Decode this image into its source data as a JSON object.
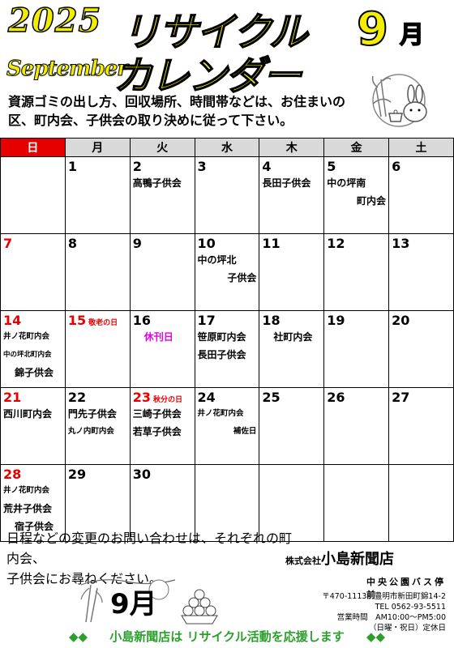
{
  "header": {
    "year": "2025",
    "month_en": "September",
    "title_line1": "リサイクル",
    "title_line2": "カレンダー",
    "month_num": "9",
    "month_unit": "月"
  },
  "intro": "資源ゴミの出し方、回収場所、時間帯などは、お住まいの区、町内会、子供会の取り決めに従って下さい。",
  "weekdays": [
    "日",
    "月",
    "火",
    "水",
    "木",
    "金",
    "土"
  ],
  "days": {
    "d1": "1",
    "d2": "2",
    "d3": "3",
    "d4": "4",
    "d5": "5",
    "d6": "6",
    "d7": "7",
    "d8": "8",
    "d9": "9",
    "d10": "10",
    "d11": "11",
    "d12": "12",
    "d13": "13",
    "d14": "14",
    "d15": "15",
    "d16": "16",
    "d17": "17",
    "d18": "18",
    "d19": "19",
    "d20": "20",
    "d21": "21",
    "d22": "22",
    "d23": "23",
    "d24": "24",
    "d25": "25",
    "d26": "26",
    "d27": "27",
    "d28": "28",
    "d29": "29",
    "d30": "30"
  },
  "holidays": {
    "d15": "敬老の日",
    "d23": "秋分の日"
  },
  "events": {
    "d2": [
      "高鴨子供会"
    ],
    "d4": [
      "長田子供会"
    ],
    "d5": [
      "中の坪南",
      "町内会"
    ],
    "d10": [
      "中の坪北",
      "子供会"
    ],
    "d14": [
      "井ノ花町内会",
      "中の坪北町内会",
      "錦子供会"
    ],
    "d16": [
      "休刊日"
    ],
    "d17": [
      "笹原町内会",
      "長田子供会"
    ],
    "d18": [
      "社町内会"
    ],
    "d21": [
      "西川町内会"
    ],
    "d22": [
      "門先子供会",
      "丸ノ内町内会"
    ],
    "d23": [
      "三崎子供会",
      "若草子供会"
    ],
    "d24": [
      "井ノ花町内会",
      "補佐日"
    ],
    "d28": [
      "井ノ花町内会",
      "荒井子供会",
      "宿子供会"
    ]
  },
  "footer": {
    "note_line1": "日程などの変更のお問い合わせは、それぞれの町内会、",
    "note_line2": "子供会にお尋ねください。",
    "company_prefix": "株式会社",
    "company_name": "小島新聞店",
    "branch": "中央公園バス停前",
    "postal_address": "〒470-1113　豊明市新田町錦14-2",
    "tel": "TEL 0562-93-5511",
    "hours": "営業時間　AM10:00～PM5:00",
    "closed": "（日曜・祝日）定休日",
    "art_month": "9月",
    "bottom_left_marks": "◆◆",
    "bottom_message": "小島新聞店は リサイクル活動を応援します",
    "bottom_right_marks": "◆◆"
  },
  "colors": {
    "title_yellow": "#f2ee00",
    "sunday_red": "#e60000",
    "header_gray": "#d9d9d9",
    "closed_day_pink": "#e600e6",
    "bottom_green": "#2b9f2b"
  },
  "icons": [
    "moon-rabbit-illustration",
    "pampas-grass-illustration",
    "tsukimi-dango-illustration"
  ]
}
